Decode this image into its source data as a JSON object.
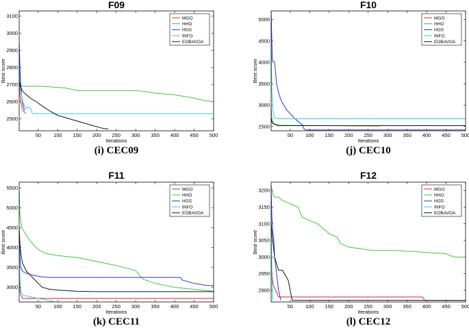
{
  "chart_data": [
    {
      "type": "line",
      "title": "F09",
      "caption": "(i)   CEC09",
      "xlabel": "Iterations",
      "ylabel": "Best score",
      "xlim": [
        1,
        500
      ],
      "ylim": [
        2430,
        3130
      ],
      "xticks": [
        50,
        100,
        150,
        200,
        250,
        300,
        350,
        400,
        450,
        500
      ],
      "yticks": [
        2500,
        2600,
        2700,
        2800,
        2900,
        3000,
        3100
      ],
      "legend": "top-right",
      "series": [
        {
          "name": "MGO",
          "color": "#e8202a",
          "x": [
            1,
            3,
            6,
            9,
            12,
            15,
            18
          ],
          "y": [
            2760,
            2640,
            2590,
            2560,
            2545,
            2540,
            2530
          ]
        },
        {
          "name": "HHO",
          "color": "#33cc33",
          "x": [
            1,
            3,
            5,
            8,
            60,
            120,
            150,
            300,
            320,
            350,
            400,
            440,
            480,
            500
          ],
          "y": [
            2900,
            2750,
            2700,
            2690,
            2690,
            2680,
            2665,
            2665,
            2660,
            2650,
            2640,
            2625,
            2605,
            2600
          ]
        },
        {
          "name": "HGS",
          "color": "#2f2fd6",
          "x": [
            1,
            3,
            5,
            7,
            9,
            12,
            15
          ],
          "y": [
            2950,
            2800,
            2700,
            2640,
            2600,
            2570,
            2550
          ]
        },
        {
          "name": "INFO",
          "color": "#22d0e0",
          "x": [
            1,
            3,
            6,
            10,
            15,
            20,
            25,
            30,
            35,
            500
          ],
          "y": [
            2780,
            2700,
            2650,
            2600,
            2575,
            2560,
            2570,
            2560,
            2530,
            2530
          ]
        },
        {
          "name": "EOBAVOA",
          "color": "#111111",
          "x": [
            1,
            4,
            10,
            20,
            30,
            45,
            60,
            80,
            100,
            130,
            160,
            190,
            215,
            230
          ],
          "y": [
            2720,
            2690,
            2660,
            2640,
            2620,
            2600,
            2575,
            2545,
            2520,
            2500,
            2480,
            2460,
            2445,
            2440
          ]
        }
      ]
    },
    {
      "type": "line",
      "title": "F10",
      "caption": "(j)   CEC10",
      "xlabel": "Iterations",
      "ylabel": "Best score",
      "xlim": [
        1,
        500
      ],
      "ylim": [
        2400,
        5200
      ],
      "xticks": [
        50,
        100,
        150,
        200,
        250,
        300,
        350,
        400,
        450,
        500
      ],
      "yticks": [
        2500,
        3000,
        3500,
        4000,
        4500,
        5000
      ],
      "legend": "top-right",
      "series": [
        {
          "name": "MGO",
          "color": "#e8202a",
          "x": [
            1,
            3,
            8,
            15,
            30,
            280
          ],
          "y": [
            2700,
            2600,
            2560,
            2540,
            2520,
            2520
          ]
        },
        {
          "name": "HHO",
          "color": "#33cc33",
          "x": [
            1,
            3,
            5,
            10,
            20,
            280
          ],
          "y": [
            3000,
            2700,
            2600,
            2560,
            2530,
            2510
          ]
        },
        {
          "name": "HGS",
          "color": "#2f2fd6",
          "x": [
            1,
            4,
            10,
            15,
            20,
            25,
            30,
            35,
            40,
            50,
            60,
            70,
            80,
            85,
            90,
            500
          ],
          "y": [
            5200,
            4050,
            4000,
            3500,
            3300,
            3150,
            3050,
            2980,
            2900,
            2800,
            2700,
            2620,
            2550,
            2450,
            2420,
            2420
          ]
        },
        {
          "name": "INFO",
          "color": "#22d0e0",
          "x": [
            1,
            3,
            5,
            10,
            20,
            500
          ],
          "y": [
            4500,
            3300,
            2900,
            2700,
            2680,
            2680
          ]
        },
        {
          "name": "EOBAVOA",
          "color": "#111111",
          "x": [
            1,
            3,
            8,
            20,
            500
          ],
          "y": [
            2700,
            2600,
            2560,
            2520,
            2520
          ]
        }
      ]
    },
    {
      "type": "line",
      "title": "F11",
      "caption": "(k)  CEC11",
      "xlabel": "Iterations",
      "ylabel": "Best score",
      "xlim": [
        1,
        500
      ],
      "ylim": [
        2630,
        5650
      ],
      "xticks": [
        50,
        100,
        150,
        200,
        250,
        300,
        350,
        400,
        450,
        500
      ],
      "yticks": [
        3000,
        3500,
        4000,
        4500,
        5000,
        5500
      ],
      "legend": "top-right",
      "series": [
        {
          "name": "MGO",
          "color": "#e8202a",
          "x": [
            1,
            3,
            5,
            10,
            500
          ],
          "y": [
            3200,
            2900,
            2800,
            2720,
            2720
          ]
        },
        {
          "name": "HHO",
          "color": "#33cc33",
          "x": [
            1,
            3,
            8,
            20,
            35,
            50,
            70,
            100,
            150,
            200,
            250,
            300,
            310,
            320,
            350,
            400,
            450,
            500
          ],
          "y": [
            5500,
            4800,
            4500,
            4300,
            4100,
            3950,
            3850,
            3800,
            3750,
            3650,
            3550,
            3420,
            3300,
            3200,
            3100,
            3000,
            2950,
            2900
          ]
        },
        {
          "name": "HGS",
          "color": "#2f2fd6",
          "x": [
            1,
            3,
            5,
            10,
            20,
            40,
            60,
            80,
            100,
            415,
            420,
            450,
            480,
            500
          ],
          "y": [
            4500,
            3800,
            3500,
            3400,
            3350,
            3300,
            3260,
            3250,
            3250,
            3250,
            3180,
            3100,
            3050,
            3040
          ]
        },
        {
          "name": "INFO",
          "color": "#22d0e0",
          "x": [
            1,
            3,
            6,
            10,
            20,
            40,
            60,
            80,
            90
          ],
          "y": [
            4000,
            3200,
            2900,
            2800,
            2780,
            2740,
            2700,
            2660,
            2640
          ]
        },
        {
          "name": "EOBAVOA",
          "color": "#111111",
          "x": [
            1,
            3,
            6,
            10,
            20,
            30,
            40,
            50,
            60,
            80,
            100,
            150,
            200,
            500
          ],
          "y": [
            4500,
            4100,
            3800,
            3600,
            3400,
            3300,
            3200,
            3100,
            3000,
            2950,
            2930,
            2900,
            2890,
            2890
          ]
        }
      ]
    },
    {
      "type": "line",
      "title": "F12",
      "caption": "(l)   CEC12",
      "xlabel": "Iterations",
      "ylabel": "Best score",
      "xlim": [
        1,
        500
      ],
      "ylim": [
        2865,
        3225
      ],
      "xticks": [
        50,
        100,
        150,
        200,
        250,
        300,
        350,
        400,
        450,
        500
      ],
      "yticks": [
        2900,
        2950,
        3000,
        3050,
        3100,
        3150,
        3200
      ],
      "legend": "top-right",
      "series": [
        {
          "name": "MGO",
          "color": "#e8202a",
          "x": [
            1,
            3,
            6,
            10,
            15,
            20,
            390,
            395,
            500
          ],
          "y": [
            3000,
            2950,
            2920,
            2905,
            2895,
            2880,
            2880,
            2870,
            2870
          ]
        },
        {
          "name": "HHO",
          "color": "#33cc33",
          "x": [
            1,
            5,
            10,
            20,
            30,
            50,
            70,
            80,
            100,
            120,
            130,
            140,
            150,
            170,
            180,
            200,
            260,
            300,
            320,
            450,
            470,
            500
          ],
          "y": [
            3215,
            3190,
            3180,
            3180,
            3170,
            3160,
            3150,
            3120,
            3110,
            3100,
            3090,
            3080,
            3070,
            3060,
            3040,
            3030,
            3020,
            3020,
            3020,
            3010,
            3000,
            3000
          ]
        },
        {
          "name": "HGS",
          "color": "#2f2fd6",
          "x": [
            1,
            3,
            5,
            8,
            10,
            12,
            15,
            18,
            20,
            23,
            26
          ],
          "y": [
            3200,
            3120,
            3080,
            3050,
            3000,
            2980,
            2950,
            2920,
            2900,
            2885,
            2870
          ]
        },
        {
          "name": "INFO",
          "color": "#22d0e0",
          "x": [
            1,
            2,
            3,
            4,
            5
          ],
          "y": [
            3150,
            3050,
            2950,
            2900,
            2870
          ]
        },
        {
          "name": "EOBAVOA",
          "color": "#111111",
          "x": [
            1,
            5,
            10,
            20,
            30,
            35,
            40,
            45,
            50,
            55,
            500
          ],
          "y": [
            3100,
            3050,
            3000,
            2960,
            2960,
            2950,
            2940,
            2930,
            2900,
            2870,
            2870
          ]
        }
      ]
    }
  ]
}
